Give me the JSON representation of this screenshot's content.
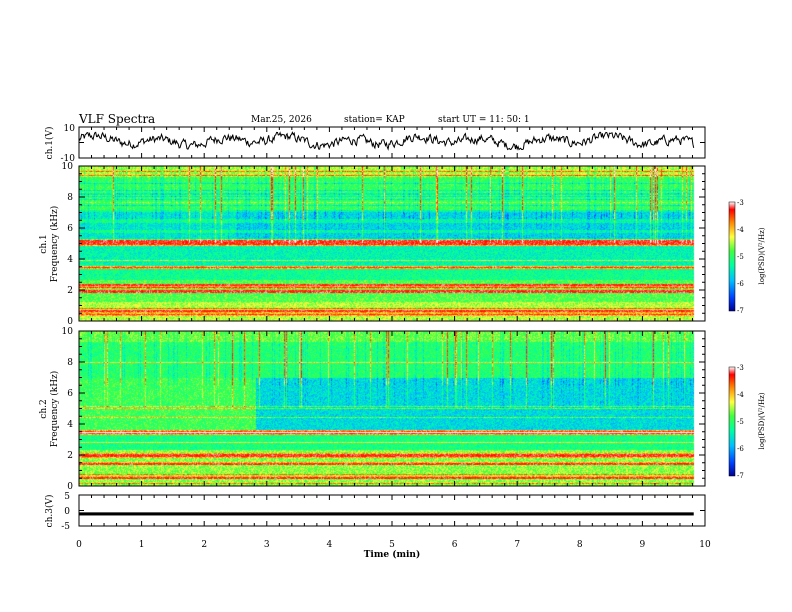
{
  "header": {
    "title": "VLF Spectra",
    "date": "Mar.25, 2026",
    "station": "station= KAP",
    "start": "start  UT =   11: 50: 1"
  },
  "colors": {
    "background": "#ffffff",
    "colormap": [
      "#000090",
      "#0040ff",
      "#00c0ff",
      "#00ffa0",
      "#40ff40",
      "#ffff40",
      "#ff8000",
      "#ff0000",
      "#ffffff"
    ]
  },
  "chart_data": [
    {
      "id": "ch1-waveform",
      "type": "line",
      "ylabel": "ch.1(V)",
      "ylim": [
        -10,
        10
      ],
      "yticks": [
        "10",
        "-10"
      ],
      "xlim": [
        0,
        9.82
      ],
      "note": "noisy broadband signal between about -4 and +6 V"
    },
    {
      "id": "ch1-spectrogram",
      "type": "heatmap",
      "ylabel_top": "ch.1",
      "ylabel": "Frequency (kHz)",
      "ylim": [
        0,
        10
      ],
      "yticks": [
        "0",
        "2",
        "4",
        "6",
        "8",
        "10"
      ],
      "xlim": [
        0,
        9.82
      ],
      "colorbar": {
        "label": "log(PSD)(V²/Hz)",
        "range": [
          -7,
          -3
        ],
        "ticks": [
          "-3",
          "-4",
          "-5",
          "-6",
          "-7"
        ]
      },
      "bands_khz": [
        5.1,
        4.95,
        3.45,
        2.3,
        2.15,
        1.9,
        0.6,
        0.4
      ],
      "regime_change_min": null
    },
    {
      "id": "ch2-spectrogram",
      "type": "heatmap",
      "ylabel_top": "ch.2",
      "ylabel": "Frequency (kHz)",
      "ylim": [
        0,
        10
      ],
      "yticks": [
        "0",
        "2",
        "4",
        "6",
        "8",
        "10"
      ],
      "xlim": [
        0,
        9.82
      ],
      "colorbar": {
        "label": "log(PSD)(V²/Hz)",
        "range": [
          -7,
          -3
        ],
        "ticks": [
          "-3",
          "-4",
          "-5",
          "-6",
          "-7"
        ]
      },
      "bands_khz": [
        3.5,
        3.4,
        2.0,
        1.9,
        1.4,
        0.5
      ],
      "regime_change_min": 2.82
    },
    {
      "id": "ch3-waveform",
      "type": "area",
      "ylabel": "ch.3(V)",
      "ylim": [
        -5,
        5
      ],
      "yticks": [
        "5",
        "0",
        "-5"
      ],
      "xlim": [
        0,
        9.82
      ],
      "band": [
        -1.6,
        -0.6
      ],
      "xlabel": "Time (min)",
      "xticks": [
        "0",
        "1",
        "2",
        "3",
        "4",
        "5",
        "6",
        "7",
        "8",
        "9",
        "10"
      ],
      "xrange_axis": [
        0,
        10
      ]
    }
  ]
}
